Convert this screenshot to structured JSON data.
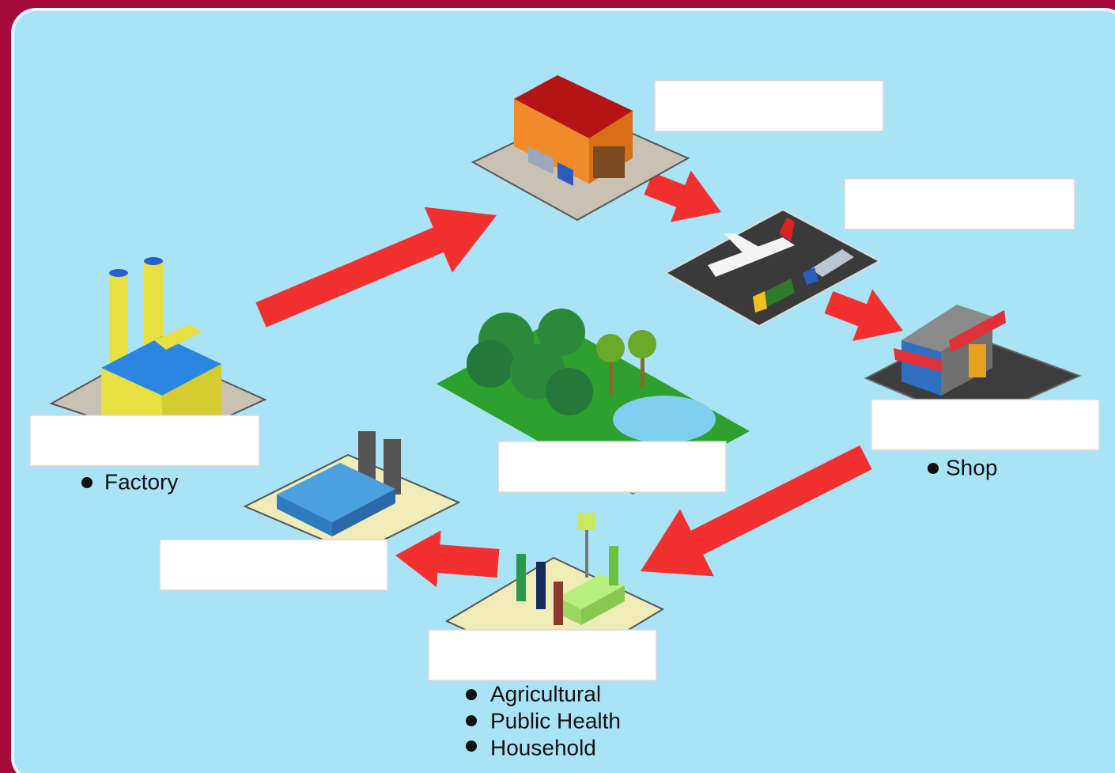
{
  "nodes": [
    {
      "bullets": [
        "Factory"
      ]
    },
    {
      "bullets": [
        "Shop"
      ]
    },
    {
      "bullets": [
        "Agricultural",
        "Public Health",
        "Household"
      ]
    }
  ]
}
